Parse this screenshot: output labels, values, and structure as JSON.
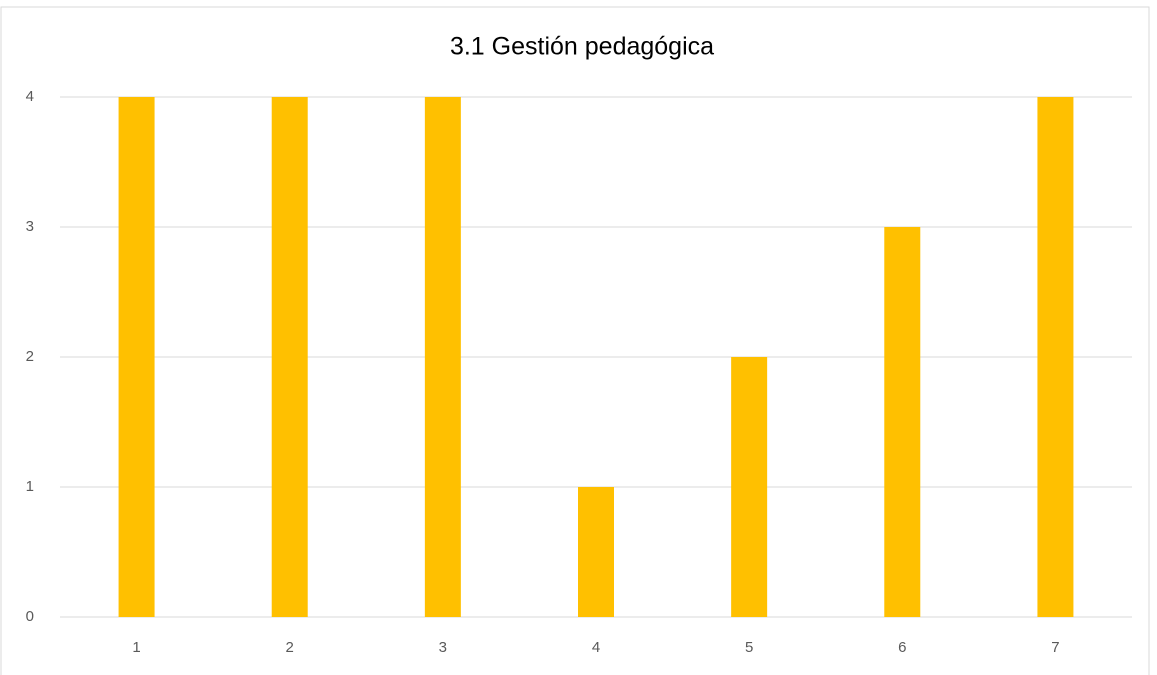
{
  "chart_data": {
    "type": "bar",
    "title": "3.1 Gestión pedagógica",
    "categories": [
      "1",
      "2",
      "3",
      "4",
      "5",
      "6",
      "7"
    ],
    "values": [
      4,
      4,
      4,
      1,
      2,
      3,
      4
    ],
    "color": "#ffc000",
    "ylim": [
      0,
      4
    ],
    "yticks": [
      0,
      1,
      2,
      3,
      4
    ],
    "grid": true
  }
}
